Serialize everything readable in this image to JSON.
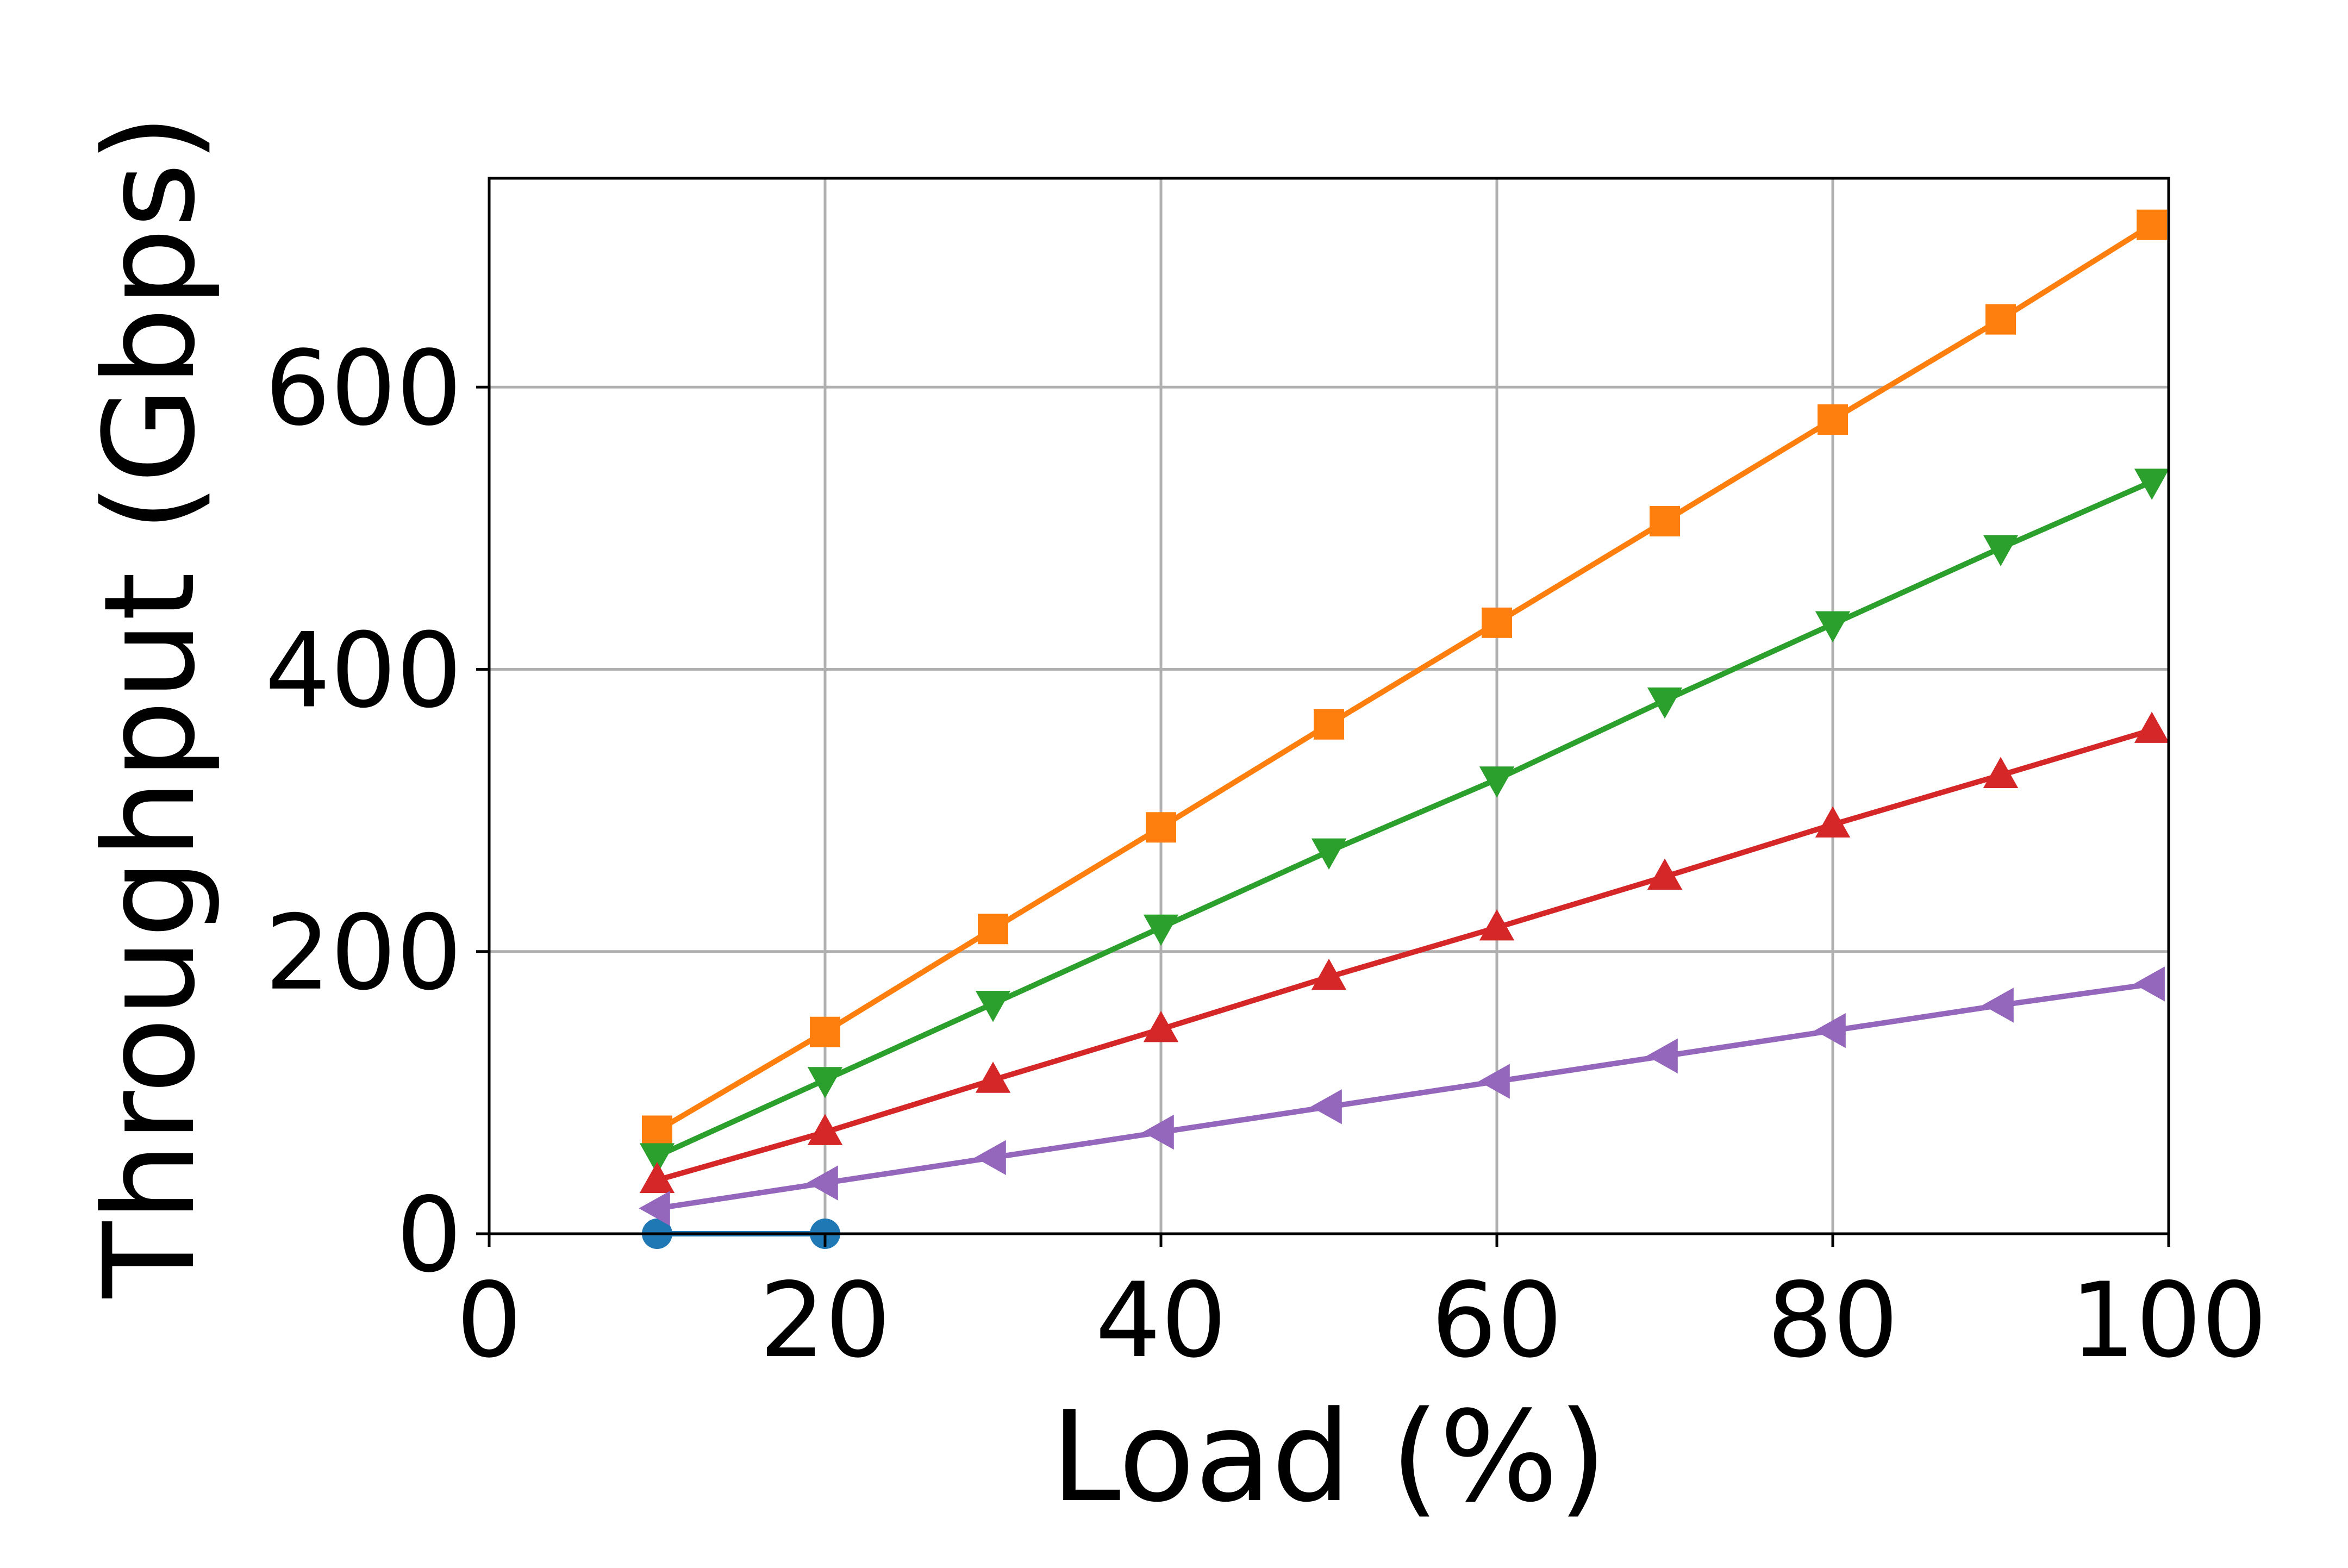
{
  "chart_data": {
    "type": "line",
    "title": "",
    "xlabel": "Load (%)",
    "ylabel": "Throughput (Gbps)",
    "xlim": [
      0,
      100
    ],
    "ylim": [
      0,
      748
    ],
    "xticks": [
      0,
      20,
      40,
      60,
      80,
      100
    ],
    "yticks": [
      0,
      200,
      400,
      600
    ],
    "xtick_labels": [
      "0",
      "20",
      "40",
      "60",
      "80",
      "100"
    ],
    "ytick_labels": [
      "0",
      "200",
      "400",
      "600"
    ],
    "grid": true,
    "legend": "none",
    "series": [
      {
        "color": "#1f77b4",
        "marker": "circle",
        "x": [
          10,
          20
        ],
        "y": [
          0,
          0
        ]
      },
      {
        "color": "#ff7f0e",
        "marker": "square",
        "x": [
          10,
          20,
          30,
          40,
          50,
          60,
          70,
          80,
          90,
          99
        ],
        "y": [
          73,
          143,
          216,
          288,
          361,
          433,
          505,
          577,
          648,
          715
        ]
      },
      {
        "color": "#2ca02c",
        "marker": "triangle-down",
        "x": [
          10,
          20,
          30,
          40,
          50,
          60,
          70,
          80,
          90,
          99
        ],
        "y": [
          55,
          109,
          163,
          217,
          271,
          322,
          378,
          432,
          486,
          533
        ]
      },
      {
        "color": "#d62728",
        "marker": "triangle-up",
        "x": [
          10,
          20,
          30,
          40,
          50,
          60,
          70,
          80,
          90,
          99
        ],
        "y": [
          38,
          72,
          109,
          145,
          182,
          217,
          253,
          290,
          325,
          357
        ]
      },
      {
        "color": "#9467bd",
        "marker": "triangle-left",
        "x": [
          10,
          20,
          30,
          40,
          50,
          60,
          70,
          80,
          90,
          99
        ],
        "y": [
          18,
          36,
          54,
          72,
          90,
          108,
          126,
          144,
          162,
          177
        ]
      }
    ]
  }
}
